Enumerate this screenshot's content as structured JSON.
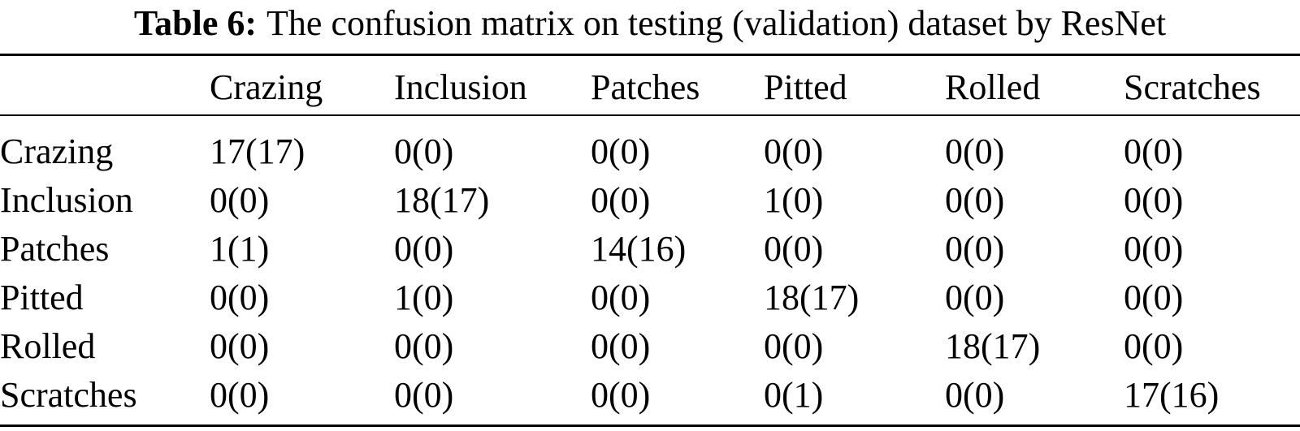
{
  "caption": {
    "label": "Table 6:",
    "text": "The confusion matrix on testing (validation) dataset by ResNet"
  },
  "table": {
    "columns": [
      "Crazing",
      "Inclusion",
      "Patches",
      "Pitted",
      "Rolled",
      "Scratches"
    ],
    "rows": [
      {
        "label": "Crazing",
        "values": [
          "17(17)",
          "0(0)",
          "0(0)",
          "0(0)",
          "0(0)",
          "0(0)"
        ]
      },
      {
        "label": "Inclusion",
        "values": [
          "0(0)",
          "18(17)",
          "0(0)",
          "1(0)",
          "0(0)",
          "0(0)"
        ]
      },
      {
        "label": "Patches",
        "values": [
          "1(1)",
          "0(0)",
          "14(16)",
          "0(0)",
          "0(0)",
          "0(0)"
        ]
      },
      {
        "label": "Pitted",
        "values": [
          "0(0)",
          "1(0)",
          "0(0)",
          "18(17)",
          "0(0)",
          "0(0)"
        ]
      },
      {
        "label": "Rolled",
        "values": [
          "0(0)",
          "0(0)",
          "0(0)",
          "0(0)",
          "18(17)",
          "0(0)"
        ]
      },
      {
        "label": "Scratches",
        "values": [
          "0(0)",
          "0(0)",
          "0(0)",
          "0(1)",
          "0(0)",
          "17(16)"
        ]
      }
    ]
  },
  "colors": {
    "text": "#000000",
    "background": "#ffffff",
    "rule": "#000000"
  }
}
